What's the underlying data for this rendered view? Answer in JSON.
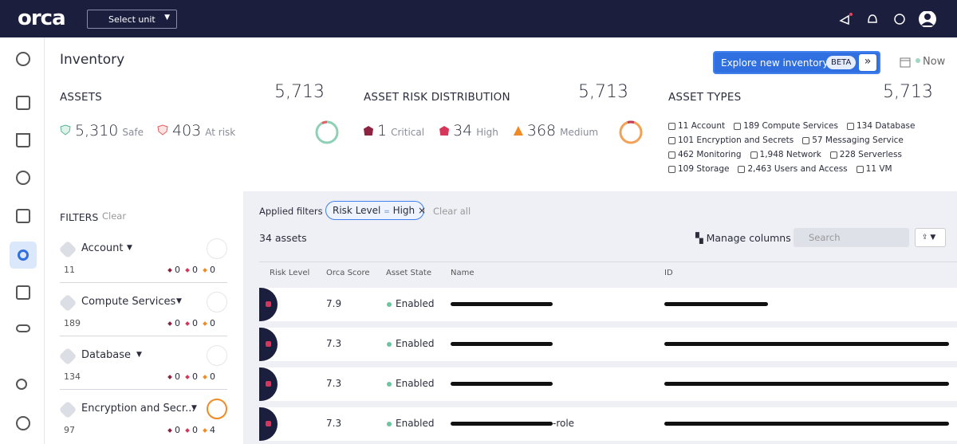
{
  "header": {
    "logo": "orca",
    "unit_select": "Select unit"
  },
  "page": {
    "title": "Inventory",
    "explore_button": "Explore new inventory",
    "beta": "BETA",
    "time": "Now"
  },
  "summary": {
    "assets": {
      "title": "ASSETS",
      "total": "5,713",
      "safe": {
        "value": "5,310",
        "label": "Safe"
      },
      "at_risk": {
        "value": "403",
        "label": "At risk"
      }
    },
    "risk": {
      "title": "ASSET RISK DISTRIBUTION",
      "total": "5,713",
      "items": [
        {
          "value": "1",
          "label": "Critical"
        },
        {
          "value": "34",
          "label": "High"
        },
        {
          "value": "368",
          "label": "Medium"
        }
      ]
    },
    "types": {
      "title": "ASSET TYPES",
      "total": "5,713",
      "items": [
        "11 Account",
        "189 Compute Services",
        "134 Database",
        "101 Encryption and Secrets",
        "57 Messaging Service",
        "462 Monitoring",
        "1,948 Network",
        "228 Serverless",
        "109 Storage",
        "2,463 Users and Access",
        "11 VM"
      ]
    }
  },
  "filters": {
    "title": "FILTERS",
    "clear": "Clear",
    "groups": [
      {
        "name": "Account",
        "count": "11",
        "critical": "0",
        "high": "0",
        "medium": "0"
      },
      {
        "name": "Compute Services",
        "count": "189",
        "critical": "0",
        "high": "0",
        "medium": "0"
      },
      {
        "name": "Database",
        "count": "134",
        "critical": "0",
        "high": "0",
        "medium": "0"
      },
      {
        "name": "Encryption and Secr...",
        "count": "97",
        "critical": "0",
        "high": "0",
        "medium": "4"
      }
    ]
  },
  "results": {
    "applied_label": "Applied filters",
    "chip": {
      "field": "Risk Level",
      "op": "=",
      "value": "High"
    },
    "clear_all": "Clear all",
    "count_label": "34 assets",
    "manage_columns": "Manage columns",
    "search_placeholder": "Search",
    "columns": [
      "Risk Level",
      "Orca Score",
      "Asset State",
      "Name",
      "ID"
    ],
    "rows": [
      {
        "score": "7.9",
        "state": "Enabled"
      },
      {
        "score": "7.3",
        "state": "Enabled"
      },
      {
        "score": "7.3",
        "state": "Enabled"
      },
      {
        "score": "7.3",
        "state": "Enabled",
        "name_suffix": "-role"
      }
    ]
  }
}
